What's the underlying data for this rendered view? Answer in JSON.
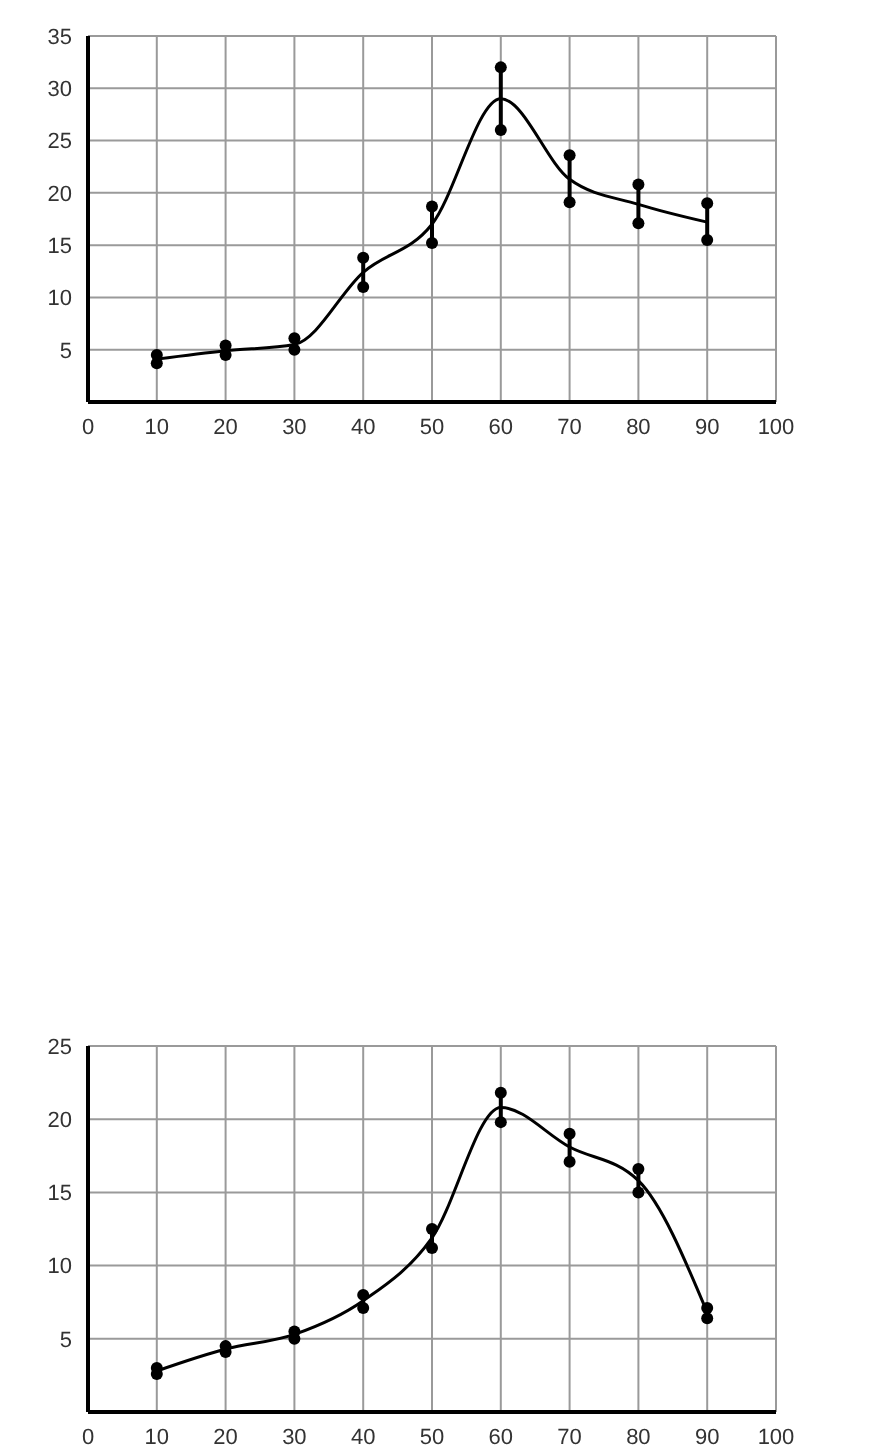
{
  "chart_data": [
    {
      "type": "scatter",
      "xlim": [
        0,
        100
      ],
      "xticks": [
        0,
        10,
        20,
        30,
        40,
        50,
        60,
        70,
        80,
        90,
        100
      ],
      "ylim": [
        0,
        35
      ],
      "yticks": [
        {
          "value": 0,
          "label": null
        },
        5,
        10,
        15,
        20,
        25,
        30,
        35
      ],
      "grid": true,
      "legend": false,
      "series": [
        {
          "color": "#000000",
          "marker": "circle",
          "x": [
            10,
            10,
            20,
            20,
            30,
            30,
            40,
            40,
            50,
            50,
            60,
            60,
            70,
            70,
            80,
            80,
            90,
            90
          ],
          "values": [
            4.5,
            3.7,
            5.4,
            4.5,
            6.1,
            5.0,
            13.8,
            11.0,
            18.7,
            15.2,
            32,
            26,
            23.6,
            19.1,
            20.8,
            17.1,
            19.0,
            15.5
          ]
        },
        {
          "type": "line",
          "color": "#000000",
          "marker": "none",
          "line_style": "solid",
          "x": [
            10,
            20,
            30,
            40,
            50,
            60,
            70,
            80,
            90
          ],
          "values": [
            4.1,
            4.9,
            5.5,
            12.4,
            17,
            29,
            21.3,
            18.9,
            17.2
          ],
          "errors": [
            0.4,
            0.45,
            0.55,
            1.4,
            1.75,
            3,
            2.25,
            1.85,
            1.75
          ]
        }
      ]
    },
    {
      "type": "scatter",
      "xlim": [
        0,
        100
      ],
      "xticks": [
        0,
        10,
        20,
        30,
        40,
        50,
        60,
        70,
        80,
        90,
        100
      ],
      "ylim": [
        0,
        25
      ],
      "yticks": [
        {
          "value": 0,
          "label": null
        },
        5,
        10,
        15,
        20,
        25
      ],
      "grid": true,
      "legend": false,
      "series": [
        {
          "color": "#000000",
          "marker": "circle",
          "x": [
            10,
            10,
            20,
            20,
            30,
            30,
            40,
            40,
            50,
            50,
            60,
            60,
            70,
            70,
            80,
            80,
            90,
            90
          ],
          "values": [
            3.0,
            2.6,
            4.5,
            4.1,
            5.5,
            5.0,
            8.0,
            7.1,
            12.5,
            11.2,
            21.8,
            19.8,
            19.0,
            17.1,
            16.6,
            15.0,
            7.1,
            6.4
          ]
        },
        {
          "type": "line",
          "color": "#000000",
          "marker": "none",
          "line_style": "solid",
          "x": [
            10,
            20,
            30,
            40,
            50,
            60,
            70,
            80,
            90
          ],
          "values": [
            2.8,
            4.3,
            5.3,
            7.6,
            11.9,
            20.8,
            18.1,
            15.8,
            6.8
          ],
          "errors": [
            0.2,
            0.2,
            0.25,
            0.45,
            0.65,
            1,
            0.95,
            0.8,
            0.35
          ]
        }
      ]
    }
  ]
}
